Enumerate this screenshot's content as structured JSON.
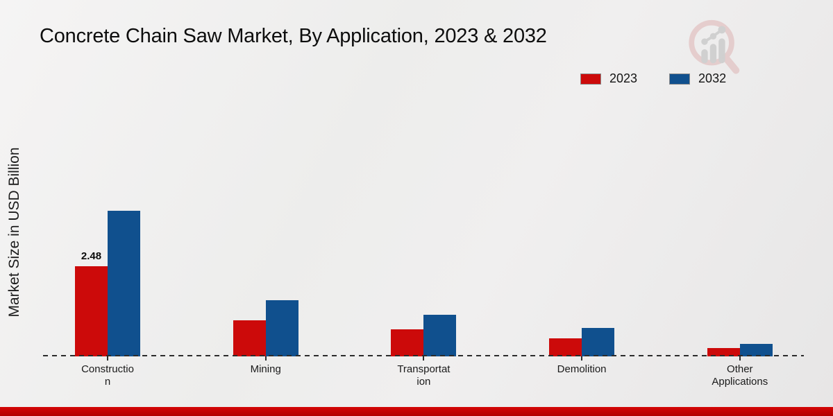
{
  "chart_data": {
    "type": "bar",
    "title": "Concrete Chain Saw Market, By Application, 2023 & 2032",
    "ylabel": "Market Size in USD Billion",
    "units": "USD Billion",
    "categories": [
      "Construction",
      "Mining",
      "Transportation",
      "Demolition",
      "Other Applications"
    ],
    "category_label_lines": [
      [
        "Constructio",
        "n"
      ],
      [
        "Mining"
      ],
      [
        "Transportat",
        "ion"
      ],
      [
        "Demolition"
      ],
      [
        "Other",
        "Applications"
      ]
    ],
    "series": [
      {
        "name": "2023",
        "color": "#cc0a0a",
        "values": [
          2.48,
          1.0,
          0.75,
          0.5,
          0.23
        ]
      },
      {
        "name": "2032",
        "color": "#10508e",
        "values": [
          4.0,
          1.55,
          1.15,
          0.78,
          0.35
        ]
      }
    ],
    "bar_value_labels": [
      {
        "series": "2023",
        "category": "Construction",
        "text": "2.48"
      }
    ],
    "axis": {
      "baseline_style": "dashed",
      "ylim": [
        0,
        4.2
      ],
      "gridlines": false,
      "y_ticks_visible": false
    },
    "legend_position": "top-right"
  },
  "footer": {
    "color": "#c00505"
  },
  "watermark": {
    "icon": "magnifier-bar-chart-logo"
  }
}
